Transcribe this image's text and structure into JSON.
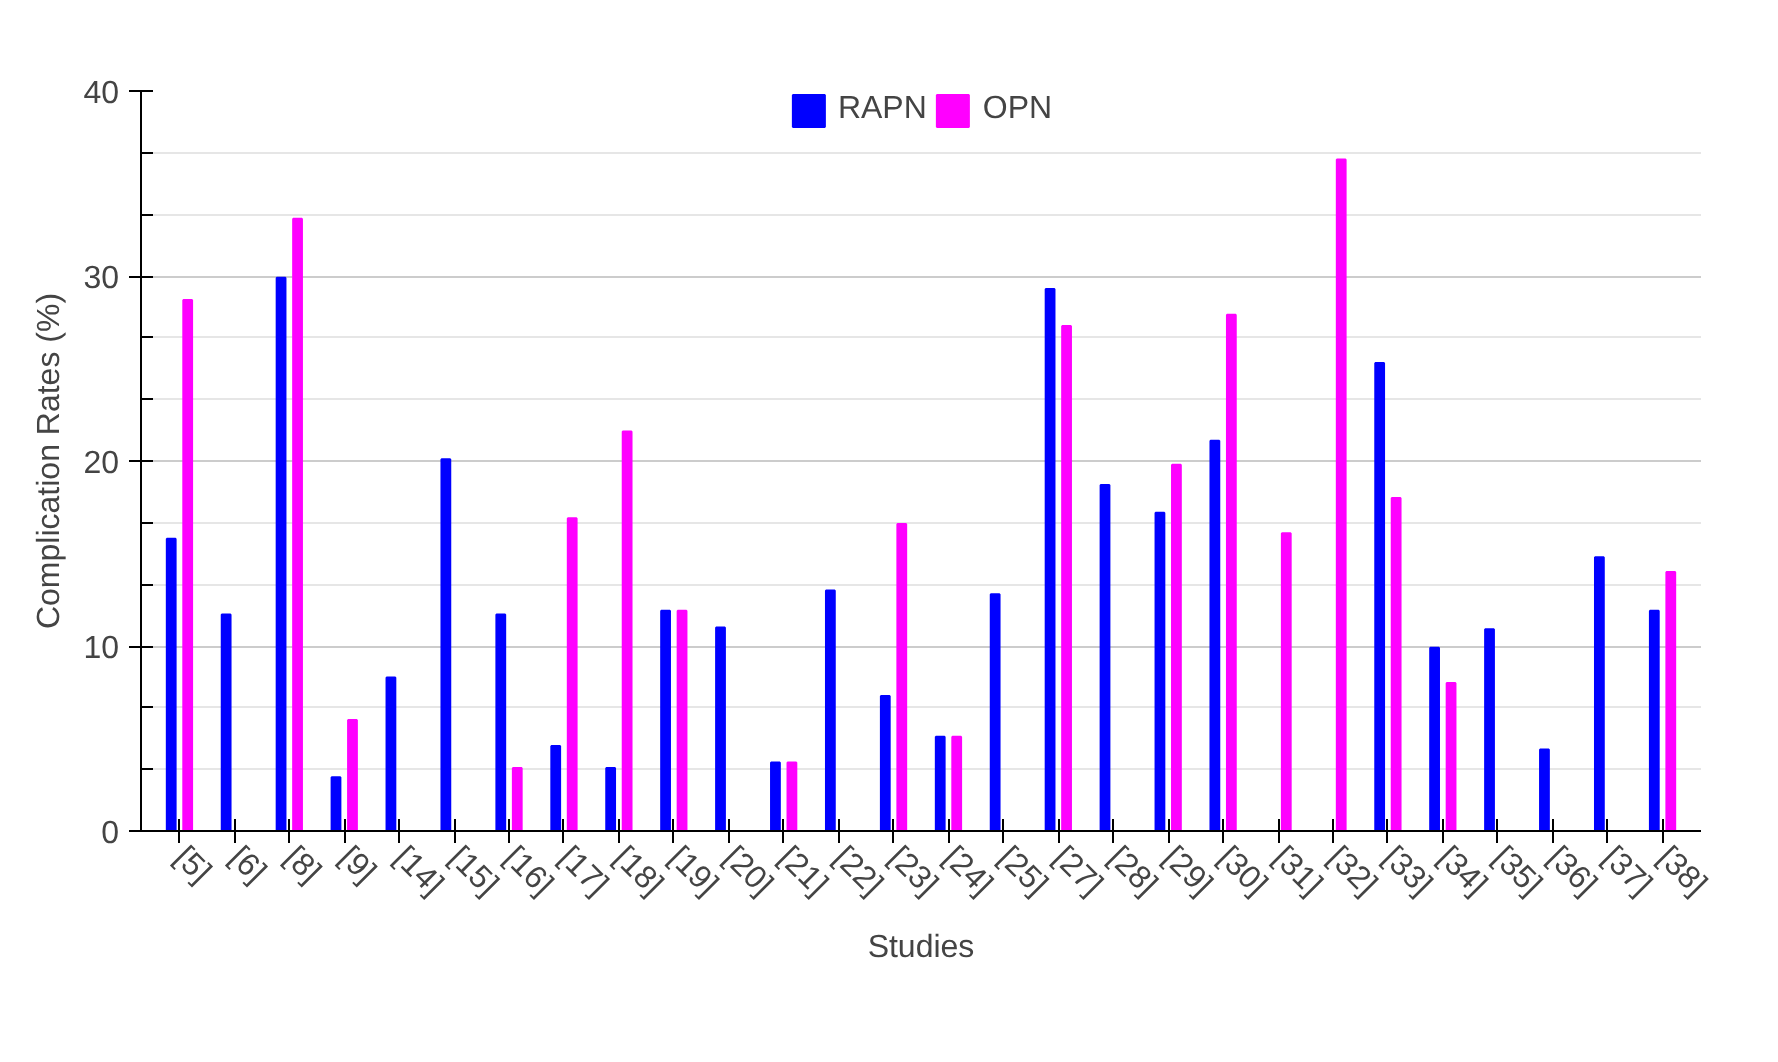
{
  "chart_data": {
    "type": "bar",
    "xlabel": "Studies",
    "ylabel": "Complication Rates (%)",
    "categories": [
      "[5]",
      "[6]",
      "[8]",
      "[9]",
      "[14]",
      "[15]",
      "[16]",
      "[17]",
      "[18]",
      "[19]",
      "[20]",
      "[21]",
      "[22]",
      "[23]",
      "[24]",
      "[25]",
      "[27]",
      "[28]",
      "[29]",
      "[30]",
      "[31]",
      "[32]",
      "[33]",
      "[34]",
      "[35]",
      "[36]",
      "[37]",
      "[38]"
    ],
    "series": [
      {
        "name": "RAPN",
        "color": "#0000ff",
        "values": [
          15.8,
          11.7,
          29.9,
          2.9,
          8.3,
          20.1,
          11.7,
          4.6,
          3.4,
          11.9,
          11.0,
          3.7,
          13.0,
          7.3,
          5.1,
          12.8,
          29.3,
          18.7,
          17.2,
          21.1,
          null,
          null,
          25.3,
          9.9,
          10.9,
          4.4,
          14.8,
          11.9
        ]
      },
      {
        "name": "OPN",
        "color": "#ff00ff",
        "values": [
          28.7,
          null,
          33.1,
          6.0,
          null,
          null,
          3.4,
          16.9,
          21.6,
          11.9,
          null,
          3.7,
          null,
          16.6,
          5.1,
          null,
          27.3,
          null,
          19.8,
          27.9,
          16.1,
          36.3,
          18.0,
          8.0,
          null,
          null,
          null,
          14.0
        ]
      }
    ],
    "ylim": [
      0,
      40
    ],
    "yticks": [
      0,
      {
        "value": 3.33,
        "label": null
      },
      {
        "value": 6.67,
        "label": null
      },
      10,
      {
        "value": 13.33,
        "label": null
      },
      {
        "value": 16.67,
        "label": null
      },
      20,
      {
        "value": 23.33,
        "label": null
      },
      {
        "value": 26.67,
        "label": null
      },
      30,
      {
        "value": 33.33,
        "label": null
      },
      {
        "value": 36.67,
        "label": null
      },
      40
    ],
    "grid": "y",
    "legend": "top"
  }
}
